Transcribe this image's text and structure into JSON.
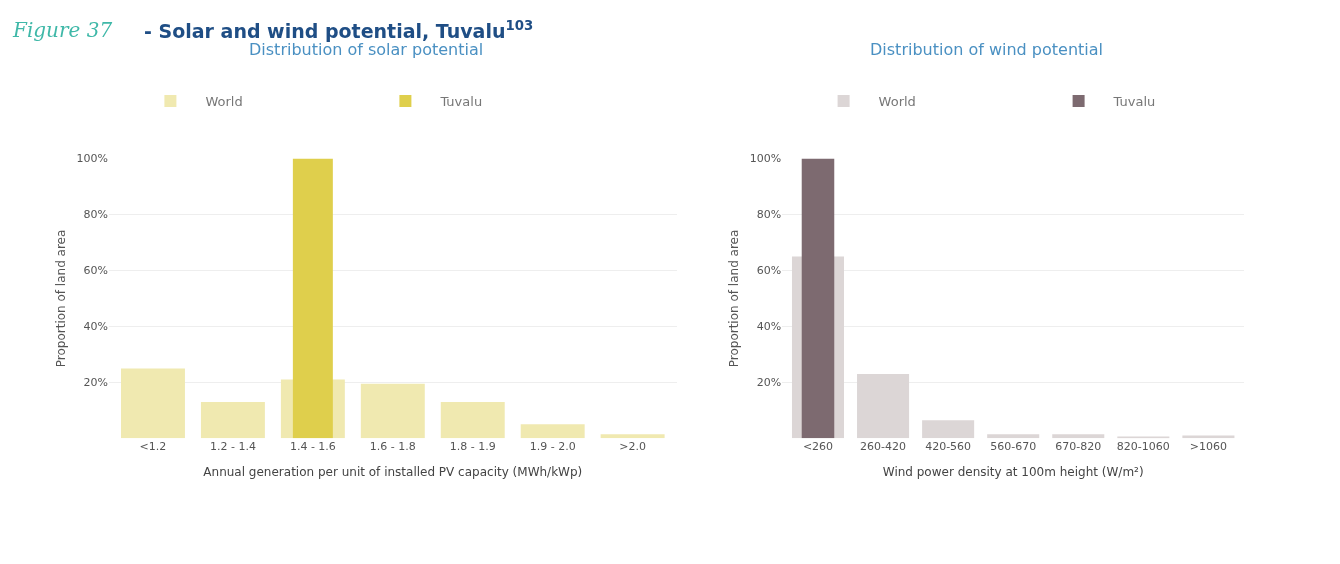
{
  "chart_data": [
    {
      "type": "bar",
      "title": "Distribution of solar potential",
      "xlabel": "Annual generation per unit of installed PV capacity (MWh/kWp)",
      "ylabel": "Proportion of land area",
      "annotations": [
        "Figure 37",
        "- Solar and wind potential, Tuvalu$^{103}$"
      ],
      "categories": [
        "<1.2",
        "1.2 - 1.4",
        "1.4 - 1.6",
        "1.6 - 1.8",
        "1.8 - 1.9",
        "1.9 - 2.0",
        ">2.0"
      ],
      "series": [
        {
          "name": "World",
          "color": "#f0e9b0",
          "values": [
            25,
            13,
            21,
            19.5,
            13,
            5,
            1.5
          ]
        },
        {
          "name": "Tuvalu",
          "color": "#dfcf4c",
          "values": [
            null,
            null,
            100,
            null,
            null,
            null,
            null
          ]
        }
      ],
      "ylim": [
        0,
        100
      ],
      "yticks": [
        {
          "value": 20,
          "label": "20%"
        },
        {
          "value": 40,
          "label": "40%"
        },
        {
          "value": 60,
          "label": "60%"
        },
        {
          "value": 80,
          "label": "80%"
        },
        {
          "value": 100,
          "label": "100%"
        }
      ],
      "grid": "y",
      "legend": "top left"
    },
    {
      "type": "bar",
      "title": "Distribution of wind potential",
      "xlabel": "Wind power density at 100m height (W/m²)",
      "ylabel": "Proportion of land area",
      "categories": [
        "<260",
        "260-420",
        "420-560",
        "560-670",
        "670-820",
        "820-1060",
        ">1060"
      ],
      "series": [
        {
          "name": "World",
          "color": "#dcd6d6",
          "values": [
            65,
            23,
            6.5,
            1.5,
            1.5,
            0.5,
            1
          ]
        },
        {
          "name": "Tuvalu",
          "color": "#7d6a70",
          "values": [
            100,
            null,
            null,
            null,
            null,
            null,
            null
          ]
        }
      ],
      "ylim": [
        0,
        100
      ],
      "yticks": [
        {
          "value": 20,
          "label": "20%"
        },
        {
          "value": 40,
          "label": "40%"
        },
        {
          "value": 60,
          "label": "60%"
        },
        {
          "value": 80,
          "label": "80%"
        },
        {
          "value": 100,
          "label": "100%"
        }
      ],
      "grid": "y",
      "legend": "top left"
    }
  ]
}
